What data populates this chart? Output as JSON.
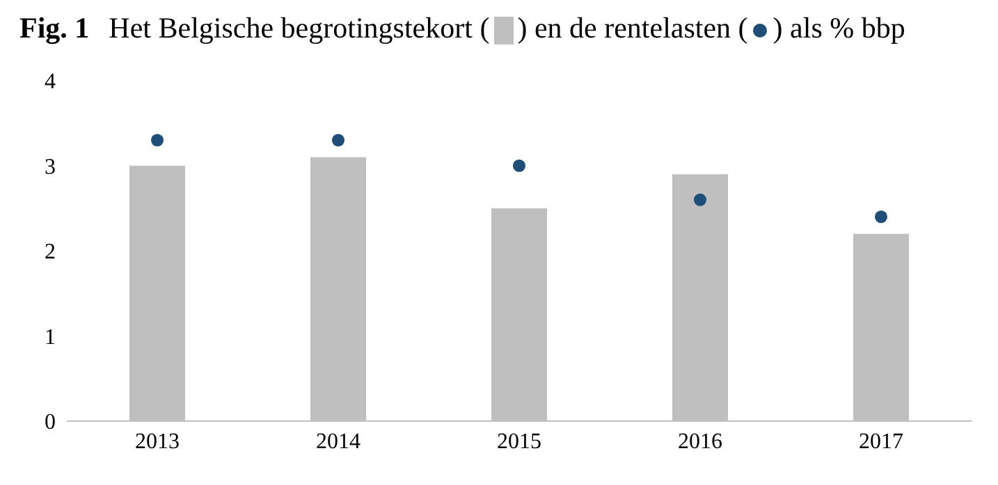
{
  "chart_data": {
    "type": "bar",
    "title": "Fig. 1 Het Belgische begrotingstekort ( ) en de rentelasten ( ) als % bbp",
    "categories": [
      "2013",
      "2014",
      "2015",
      "2016",
      "2017"
    ],
    "series": [
      {
        "color": "#bfbfbf",
        "values": [
          3.0,
          3.1,
          2.5,
          2.9,
          2.2
        ]
      },
      {
        "type": "scatter",
        "color": "#1f4e79",
        "values": [
          3.3,
          3.3,
          3.0,
          2.6,
          2.4
        ]
      }
    ],
    "ylim": [
      0,
      4
    ],
    "yticks": [
      0,
      1,
      2,
      3,
      4
    ],
    "marker": "circle"
  }
}
